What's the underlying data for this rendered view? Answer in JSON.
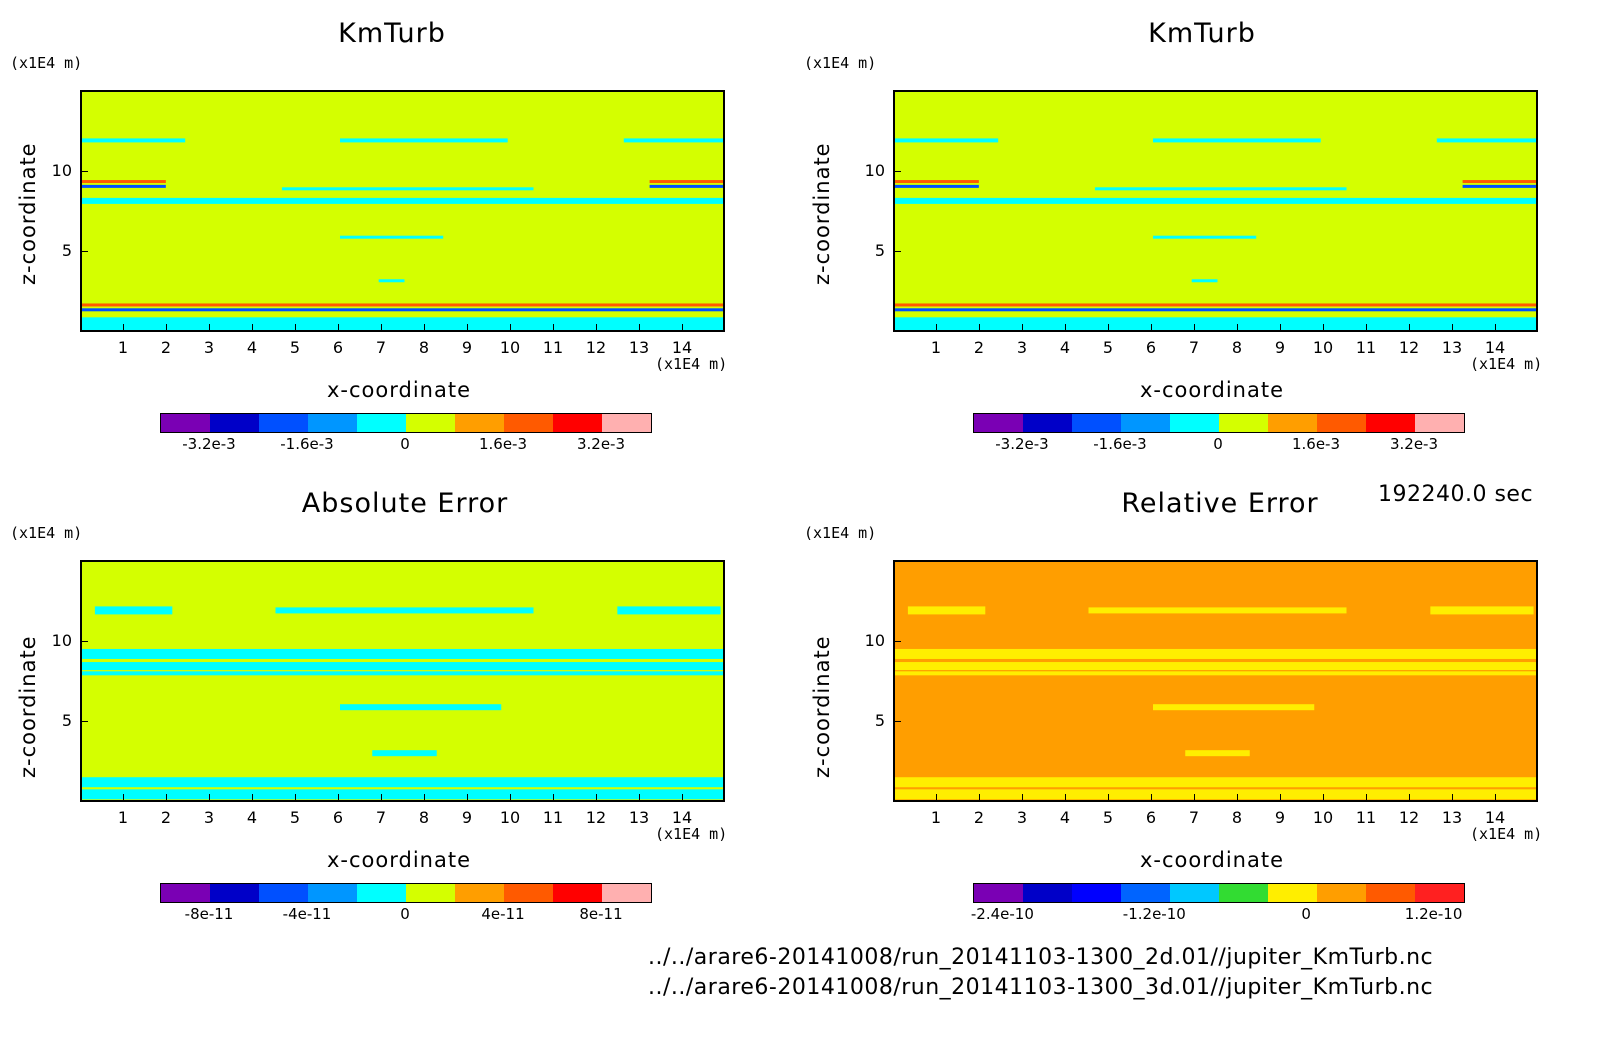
{
  "time_label": "192240.0 sec",
  "files": [
    "../../arare6-20141008/run_20141103-1300_2d.01//jupiter_KmTurb.nc",
    "../../arare6-20141008/run_20141103-1300_3d.01//jupiter_KmTurb.nc"
  ],
  "chart_data": [
    {
      "type": "heatmap",
      "title": "KmTurb",
      "xlabel": "x-coordinate",
      "ylabel": "z-coordinate",
      "x_unit": "(x1E4 m)",
      "y_unit": "(x1E4 m)",
      "x_ticks": [
        "1",
        "2",
        "3",
        "4",
        "5",
        "6",
        "7",
        "8",
        "9",
        "10",
        "11",
        "12",
        "13",
        "14"
      ],
      "y_ticks": [
        "5",
        "10"
      ],
      "xlim": [
        0,
        15
      ],
      "ylim": [
        0,
        15
      ],
      "background": "#d4ff00",
      "colorbar": {
        "colors": [
          "#7a00b4",
          "#0000c8",
          "#0050ff",
          "#0096ff",
          "#00ffff",
          "#d4ff00",
          "#ff9e00",
          "#ff5a00",
          "#ff0000",
          "#ffb0b0"
        ],
        "tick_labels": [
          "-3.2e-3",
          "-1.6e-3",
          "0",
          "1.6e-3",
          "3.2e-3"
        ]
      }
    },
    {
      "type": "heatmap",
      "title": "KmTurb",
      "xlabel": "x-coordinate",
      "ylabel": "z-coordinate",
      "x_unit": "(x1E4 m)",
      "y_unit": "(x1E4 m)",
      "x_ticks": [
        "1",
        "2",
        "3",
        "4",
        "5",
        "6",
        "7",
        "8",
        "9",
        "10",
        "11",
        "12",
        "13",
        "14"
      ],
      "y_ticks": [
        "5",
        "10"
      ],
      "xlim": [
        0,
        15
      ],
      "ylim": [
        0,
        15
      ],
      "background": "#d4ff00",
      "colorbar": {
        "colors": [
          "#7a00b4",
          "#0000c8",
          "#0050ff",
          "#0096ff",
          "#00ffff",
          "#d4ff00",
          "#ff9e00",
          "#ff5a00",
          "#ff0000",
          "#ffb0b0"
        ],
        "tick_labels": [
          "-3.2e-3",
          "-1.6e-3",
          "0",
          "1.6e-3",
          "3.2e-3"
        ]
      }
    },
    {
      "type": "heatmap",
      "title": "Absolute Error",
      "xlabel": "x-coordinate",
      "ylabel": "z-coordinate",
      "x_unit": "(x1E4 m)",
      "y_unit": "(x1E4 m)",
      "x_ticks": [
        "1",
        "2",
        "3",
        "4",
        "5",
        "6",
        "7",
        "8",
        "9",
        "10",
        "11",
        "12",
        "13",
        "14"
      ],
      "y_ticks": [
        "5",
        "10"
      ],
      "xlim": [
        0,
        15
      ],
      "ylim": [
        0,
        15
      ],
      "background": "#d4ff00",
      "colorbar": {
        "colors": [
          "#7a00b4",
          "#0000c8",
          "#0050ff",
          "#0096ff",
          "#00ffff",
          "#d4ff00",
          "#ff9e00",
          "#ff5a00",
          "#ff0000",
          "#ffb0b0"
        ],
        "tick_labels": [
          "-8e-11",
          "-4e-11",
          "0",
          "4e-11",
          "8e-11"
        ]
      }
    },
    {
      "type": "heatmap",
      "title": "Relative Error",
      "xlabel": "x-coordinate",
      "ylabel": "z-coordinate",
      "x_unit": "(x1E4 m)",
      "y_unit": "(x1E4 m)",
      "x_ticks": [
        "1",
        "2",
        "3",
        "4",
        "5",
        "6",
        "7",
        "8",
        "9",
        "10",
        "11",
        "12",
        "13",
        "14"
      ],
      "y_ticks": [
        "5",
        "10"
      ],
      "xlim": [
        0,
        15
      ],
      "ylim": [
        0,
        15
      ],
      "background": "#ff9e00",
      "colorbar": {
        "colors": [
          "#7a00b4",
          "#0000c8",
          "#0000ff",
          "#0064ff",
          "#00c8ff",
          "#32dc32",
          "#ffee00",
          "#ff9e00",
          "#ff5a00",
          "#ff2020"
        ],
        "tick_labels": [
          "-2.4e-10",
          "-1.2e-10",
          "0",
          "1.2e-10"
        ]
      }
    }
  ]
}
